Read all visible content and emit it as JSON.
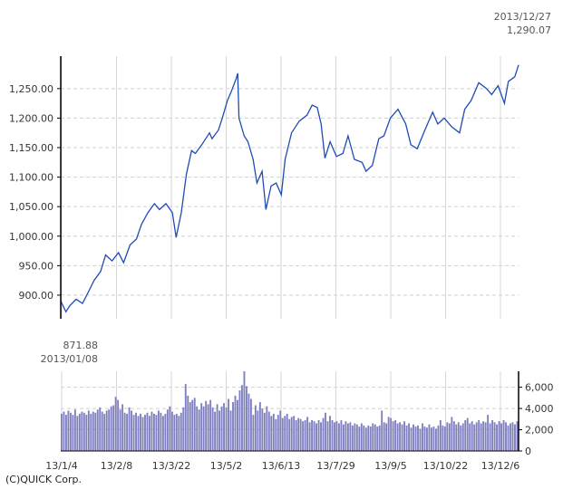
{
  "chart_data": [
    {
      "type": "line",
      "series": [
        {
          "values": [
            [
              "2013-01-04",
              890
            ],
            [
              "2013-01-08",
              871.88
            ],
            [
              "2013-01-11",
              882
            ],
            [
              "2013-01-16",
              893
            ],
            [
              "2013-01-21",
              886
            ],
            [
              "2013-01-25",
              903
            ],
            [
              "2013-01-30",
              925
            ],
            [
              "2013-02-04",
              940
            ],
            [
              "2013-02-08",
              968
            ],
            [
              "2013-02-13",
              958
            ],
            [
              "2013-02-18",
              972
            ],
            [
              "2013-02-22",
              955
            ],
            [
              "2013-02-27",
              985
            ],
            [
              "2013-03-04",
              995
            ],
            [
              "2013-03-08",
              1020
            ],
            [
              "2013-03-13",
              1040
            ],
            [
              "2013-03-18",
              1055
            ],
            [
              "2013-03-22",
              1045
            ],
            [
              "2013-03-27",
              1055
            ],
            [
              "2013-04-01",
              1040
            ],
            [
              "2013-04-04",
              998
            ],
            [
              "2013-04-08",
              1040
            ],
            [
              "2013-04-12",
              1105
            ],
            [
              "2013-04-16",
              1145
            ],
            [
              "2013-04-19",
              1140
            ],
            [
              "2013-04-24",
              1155
            ],
            [
              "2013-04-30",
              1175
            ],
            [
              "2013-05-02",
              1165
            ],
            [
              "2013-05-07",
              1180
            ],
            [
              "2013-05-10",
              1200
            ],
            [
              "2013-05-14",
              1230
            ],
            [
              "2013-05-17",
              1245
            ],
            [
              "2013-05-21",
              1268
            ],
            [
              "2013-05-22",
              1276
            ],
            [
              "2013-05-23",
              1200
            ],
            [
              "2013-05-27",
              1170
            ],
            [
              "2013-05-30",
              1160
            ],
            [
              "2013-06-03",
              1130
            ],
            [
              "2013-06-06",
              1090
            ],
            [
              "2013-06-10",
              1110
            ],
            [
              "2013-06-13",
              1045
            ],
            [
              "2013-06-17",
              1085
            ],
            [
              "2013-06-21",
              1090
            ],
            [
              "2013-06-25",
              1070
            ],
            [
              "2013-06-28",
              1130
            ],
            [
              "2013-07-03",
              1175
            ],
            [
              "2013-07-09",
              1195
            ],
            [
              "2013-07-15",
              1205
            ],
            [
              "2013-07-19",
              1222
            ],
            [
              "2013-07-23",
              1218
            ],
            [
              "2013-07-26",
              1190
            ],
            [
              "2013-07-29",
              1132
            ],
            [
              "2013-08-02",
              1160
            ],
            [
              "2013-08-07",
              1135
            ],
            [
              "2013-08-12",
              1140
            ],
            [
              "2013-08-16",
              1170
            ],
            [
              "2013-08-21",
              1130
            ],
            [
              "2013-08-27",
              1125
            ],
            [
              "2013-08-30",
              1110
            ],
            [
              "2013-09-04",
              1120
            ],
            [
              "2013-09-09",
              1165
            ],
            [
              "2013-09-13",
              1170
            ],
            [
              "2013-09-18",
              1200
            ],
            [
              "2013-09-24",
              1215
            ],
            [
              "2013-09-30",
              1190
            ],
            [
              "2013-10-04",
              1155
            ],
            [
              "2013-10-09",
              1148
            ],
            [
              "2013-10-15",
              1180
            ],
            [
              "2013-10-21",
              1210
            ],
            [
              "2013-10-25",
              1190
            ],
            [
              "2013-10-30",
              1200
            ],
            [
              "2013-11-05",
              1185
            ],
            [
              "2013-11-11",
              1175
            ],
            [
              "2013-11-15",
              1215
            ],
            [
              "2013-11-20",
              1230
            ],
            [
              "2013-11-26",
              1260
            ],
            [
              "2013-12-02",
              1250
            ],
            [
              "2013-12-06",
              1240
            ],
            [
              "2013-12-11",
              1255
            ],
            [
              "2013-12-16",
              1225
            ],
            [
              "2013-12-19",
              1262
            ],
            [
              "2013-12-24",
              1270
            ],
            [
              "2013-12-27",
              1290.07
            ]
          ],
          "color": "#1f4bb5"
        }
      ],
      "y_ticks": [
        "900.00",
        "950.00",
        "1,000.00",
        "1,050.00",
        "1,100.00",
        "1,150.00",
        "1,200.00",
        "1,250.00"
      ],
      "ylim": [
        860,
        1305
      ],
      "grid": true,
      "annotations": {
        "high_date": "2013/12/27",
        "high_value": "1,290.07",
        "low_value": "871.88",
        "low_date": "2013/01/08"
      }
    },
    {
      "type": "bar",
      "values": [
        3500,
        3700,
        3400,
        3800,
        3600,
        3400,
        3900,
        3300,
        3500,
        3700,
        3600,
        3400,
        3800,
        3500,
        3700,
        3600,
        3900,
        4100,
        3700,
        3500,
        3800,
        3900,
        4200,
        4300,
        5100,
        4800,
        3900,
        4400,
        3600,
        3500,
        4100,
        3800,
        3400,
        3600,
        3300,
        3500,
        3200,
        3400,
        3600,
        3300,
        3700,
        3500,
        3400,
        3800,
        3600,
        3300,
        3500,
        3900,
        4200,
        3700,
        3400,
        3500,
        3300,
        3600,
        4100,
        6300,
        5200,
        4600,
        4800,
        5000,
        4200,
        3900,
        4500,
        4200,
        4700,
        4400,
        4800,
        4100,
        3700,
        4400,
        3800,
        4200,
        4500,
        4100,
        4900,
        3800,
        4600,
        5200,
        4800,
        5700,
        6200,
        7500,
        6100,
        5400,
        4900,
        3400,
        4300,
        3800,
        4600,
        4000,
        3600,
        4200,
        3700,
        3300,
        3500,
        3000,
        3400,
        3800,
        3100,
        3300,
        3500,
        3000,
        3200,
        3300,
        2900,
        3100,
        3000,
        2800,
        2900,
        3200,
        2700,
        2900,
        2800,
        2600,
        2900,
        2700,
        3100,
        3600,
        2800,
        3300,
        2900,
        2700,
        2800,
        2600,
        2900,
        2500,
        2800,
        2600,
        2700,
        2400,
        2600,
        2500,
        2300,
        2600,
        2400,
        2200,
        2400,
        2300,
        2600,
        2500,
        2300,
        2400,
        3800,
        2700,
        2600,
        3200,
        3100,
        2800,
        2900,
        2600,
        2700,
        2500,
        2800,
        2400,
        2600,
        2200,
        2500,
        2300,
        2400,
        2100,
        2600,
        2300,
        2200,
        2500,
        2200,
        2300,
        2100,
        2400,
        2900,
        2400,
        2300,
        2700,
        2600,
        3200,
        2800,
        2500,
        2700,
        2400,
        2600,
        2900,
        3100,
        2600,
        2800,
        2500,
        2700,
        2900,
        2600,
        2800,
        2700,
        3400,
        2600,
        2900,
        2700,
        2500,
        2800,
        2600,
        2900,
        2700,
        2400,
        2600,
        2700,
        2500,
        2800
      ],
      "color": "#8080c0",
      "y_ticks": [
        "0",
        "2,000",
        "4,000",
        "6,000"
      ],
      "ylim": [
        0,
        7500
      ],
      "x_tick_labels": [
        "13/1/4",
        "13/2/8",
        "13/3/22",
        "13/5/2",
        "13/6/13",
        "13/7/29",
        "13/9/5",
        "13/10/22",
        "13/12/6"
      ],
      "grid": true
    }
  ],
  "footer": {
    "copyright": "(C)QUICK Corp."
  }
}
